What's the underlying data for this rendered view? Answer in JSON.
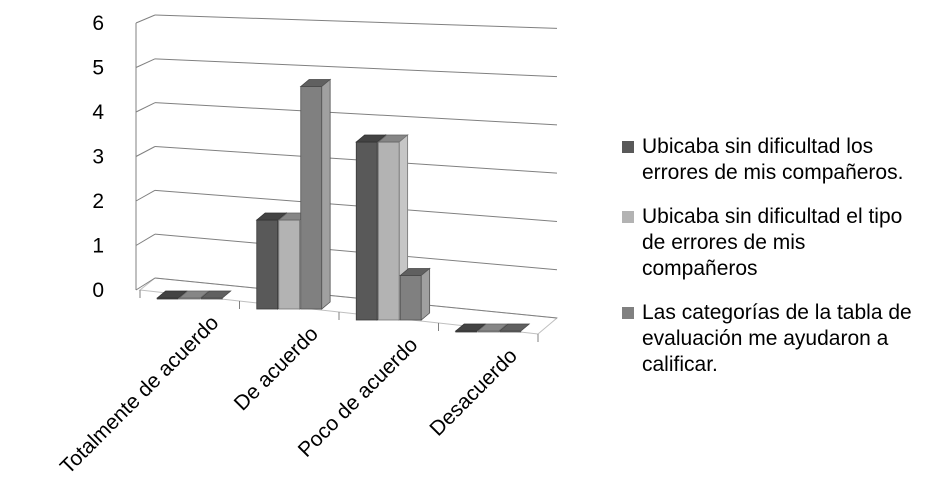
{
  "chart_data": {
    "type": "bar",
    "style": "3d-clustered",
    "categories": [
      "Totalmente de acuerdo",
      "De acuerdo",
      "Poco de acuerdo",
      "Desacuerdo"
    ],
    "series": [
      {
        "name": " Ubicaba sin dificultad los errores de mis compañeros.",
        "values": [
          0,
          2,
          4,
          0
        ],
        "color": "#595959"
      },
      {
        "name": "Ubicaba sin dificultad el tipo de errores de mis compañeros",
        "values": [
          0,
          2,
          4,
          0
        ],
        "color": "#b3b3b3"
      },
      {
        "name": "Las categorías de la tabla de evaluación me ayudaron a calificar.",
        "values": [
          0,
          5,
          1,
          0
        ],
        "color": "#808080"
      }
    ],
    "y_ticks": [
      "0",
      "1",
      "2",
      "3",
      "4",
      "5",
      "6"
    ],
    "ylim": [
      0,
      6
    ],
    "xlabel": "",
    "ylabel": "",
    "grid": true,
    "legend_position": "right"
  }
}
